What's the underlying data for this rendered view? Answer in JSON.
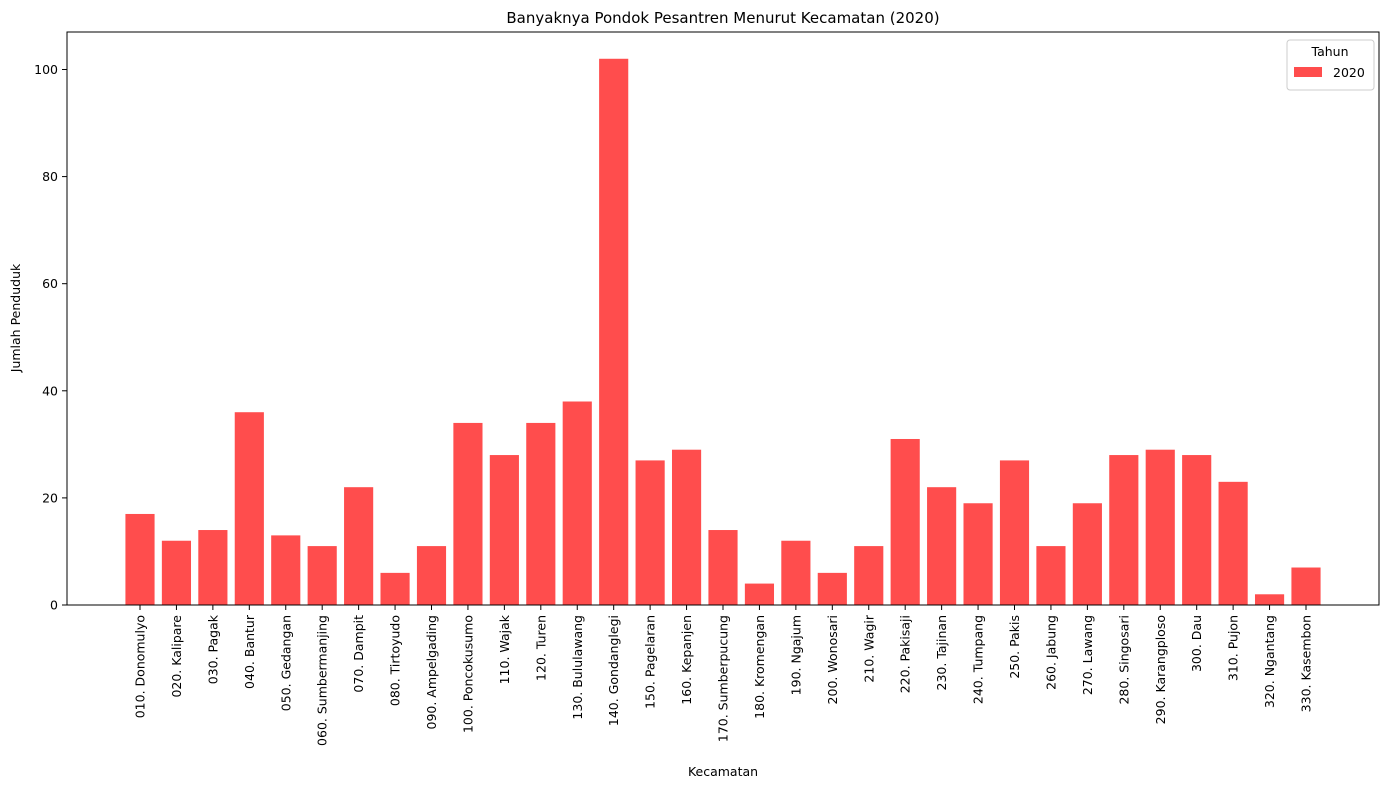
{
  "chart_data": {
    "type": "bar",
    "title": "Banyaknya Pondok Pesantren Menurut Kecamatan (2020)",
    "xlabel": "Kecamatan",
    "ylabel": "Jumlah Penduduk",
    "ylim": [
      0,
      107
    ],
    "yticks": [
      0,
      20,
      40,
      60,
      80,
      100
    ],
    "grid": false,
    "legend": {
      "title": "Tahun",
      "placement": "top-right"
    },
    "bar_color": "#ff4d4d",
    "categories": [
      "010. Donomulyo",
      "020. Kalipare",
      "030. Pagak",
      "040. Bantur",
      "050. Gedangan",
      "060. Sumbermanjing",
      "070. Dampit",
      "080. Tirtoyudo",
      "090. Ampelgading",
      "100. Poncokusumo",
      "110. Wajak",
      "120. Turen",
      "130. Bululawang",
      "140. Gondanglegi",
      "150. Pagelaran",
      "160. Kepanjen",
      "170. Sumberpucung",
      "180. Kromengan",
      "190. Ngajum",
      "200. Wonosari",
      "210. Wagir",
      "220. Pakisaji",
      "230. Tajinan",
      "240. Tumpang",
      "250. Pakis",
      "260. Jabung",
      "270. Lawang",
      "280. Singosari",
      "290. Karangploso",
      "300. Dau",
      "310. Pujon",
      "320. Ngantang",
      "330. Kasembon"
    ],
    "series": [
      {
        "name": "2020",
        "values": [
          17,
          12,
          14,
          36,
          13,
          11,
          22,
          6,
          11,
          34,
          28,
          34,
          38,
          102,
          27,
          29,
          14,
          4,
          12,
          6,
          11,
          31,
          22,
          19,
          27,
          11,
          19,
          28,
          29,
          28,
          23,
          2,
          7
        ]
      }
    ]
  }
}
